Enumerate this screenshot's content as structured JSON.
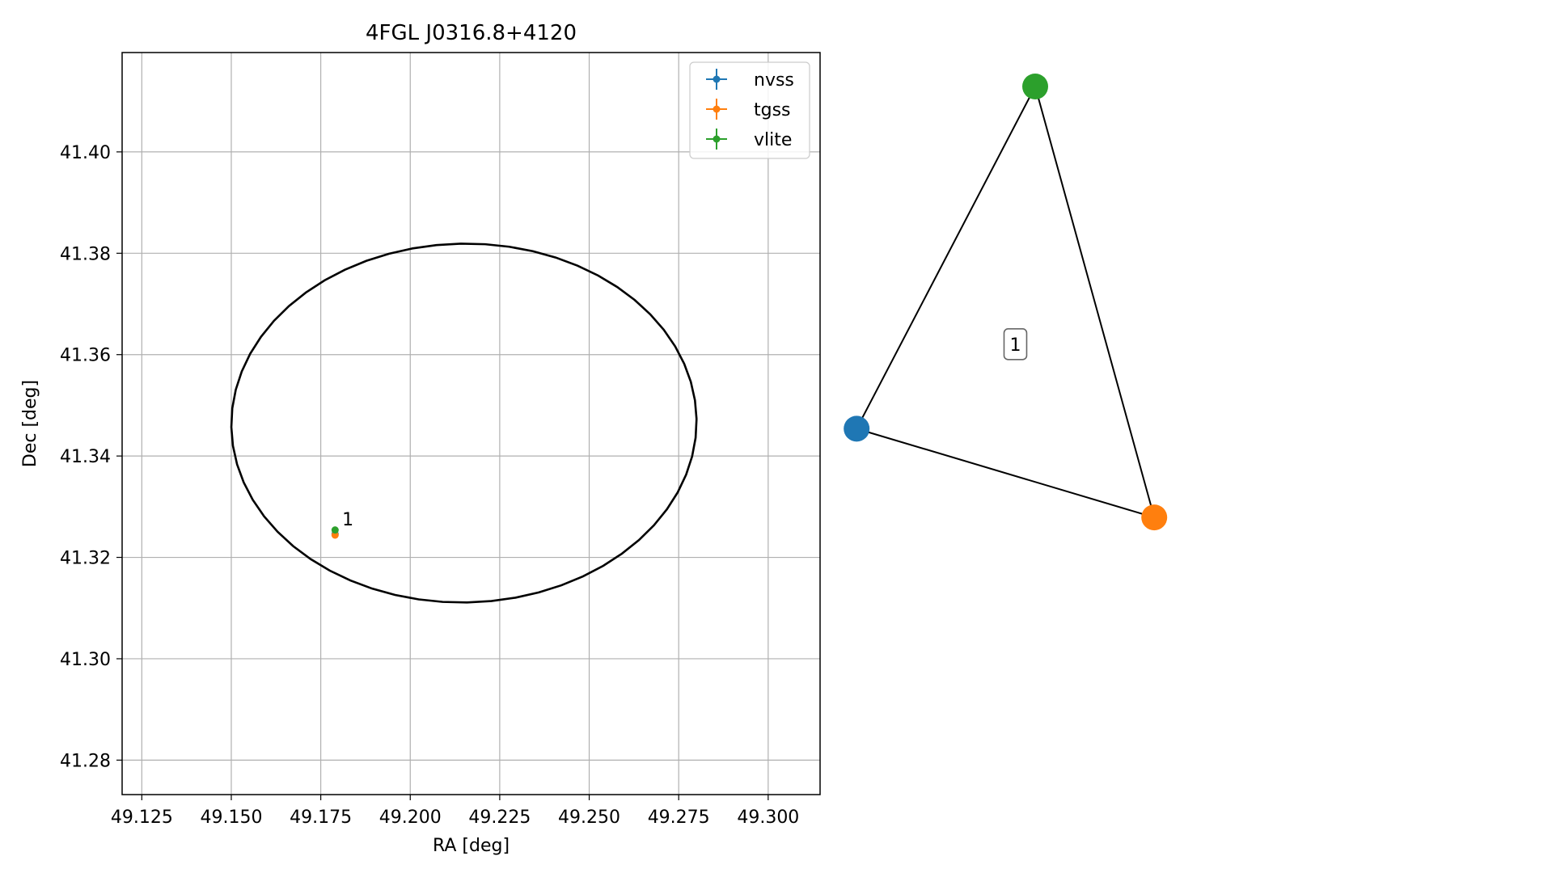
{
  "chart_data": [
    {
      "type": "scatter",
      "title": "4FGL J0316.8+4120",
      "xlabel": "RA [deg]",
      "ylabel": "Dec [deg]",
      "xlim": [
        49.1195,
        49.3145
      ],
      "ylim": [
        41.2732,
        41.4196
      ],
      "grid": true,
      "xticks": [
        49.125,
        49.15,
        49.175,
        49.2,
        49.225,
        49.25,
        49.275,
        49.3
      ],
      "xtick_labels": [
        "49.125",
        "49.150",
        "49.175",
        "49.200",
        "49.225",
        "49.250",
        "49.275",
        "49.300"
      ],
      "yticks": [
        41.28,
        41.3,
        41.32,
        41.34,
        41.36,
        41.38,
        41.4
      ],
      "ytick_labels": [
        "41.28",
        "41.30",
        "41.32",
        "41.34",
        "41.36",
        "41.38",
        "41.40"
      ],
      "legend": {
        "placement": "top-right",
        "entries": [
          "nvss",
          "tgss",
          "vlite"
        ]
      },
      "series": [
        {
          "name": "nvss",
          "color": "#1f77b4",
          "points": [
            {
              "x": 49.179,
              "y": 41.3246
            }
          ]
        },
        {
          "name": "tgss",
          "color": "#ff7f0e",
          "points": [
            {
              "x": 49.179,
              "y": 41.3244
            }
          ]
        },
        {
          "name": "vlite",
          "color": "#2ca02c",
          "points": [
            {
              "x": 49.179,
              "y": 41.3254
            }
          ]
        }
      ],
      "annotations": [
        {
          "text": "1",
          "x": 49.181,
          "y": 41.3276
        }
      ],
      "ellipse": {
        "center": [
          49.215,
          41.3465
        ],
        "ra_semi_axis": 0.065,
        "dec_semi_axis": 0.0354,
        "tilt_deg": -1,
        "color": "#000000"
      }
    },
    {
      "type": "network",
      "nodes": [
        {
          "name": "nvss",
          "color": "#1f77b4",
          "pos": [
            -0.6,
            -0.08
          ]
        },
        {
          "name": "tgss",
          "color": "#ff7f0e",
          "pos": [
            0.4,
            -0.36
          ]
        },
        {
          "name": "vlite",
          "color": "#2ca02c",
          "pos": [
            0.0,
            1.0
          ]
        }
      ],
      "edges": [
        [
          "nvss",
          "vlite"
        ],
        [
          "vlite",
          "tgss"
        ],
        [
          "nvss",
          "tgss"
        ]
      ],
      "cluster_label": "1"
    }
  ]
}
